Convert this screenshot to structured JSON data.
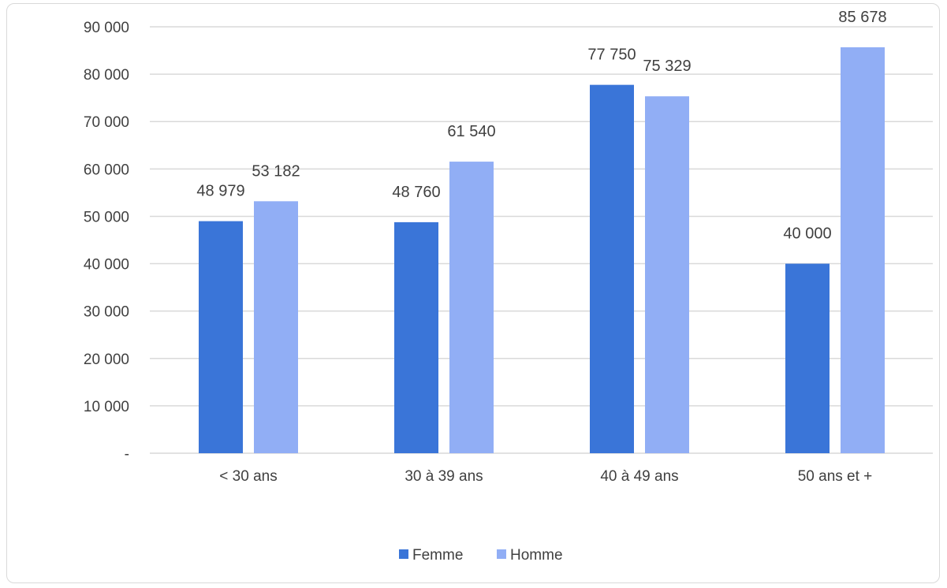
{
  "chart_data": {
    "type": "bar",
    "categories": [
      "< 30 ans",
      "30 à 39 ans",
      "40 à 49 ans",
      "50 ans et +"
    ],
    "series": [
      {
        "name": "Femme",
        "color": "#3a75d8",
        "values": [
          48979,
          48760,
          77750,
          40000
        ],
        "labels": [
          "48 979",
          "48 760",
          "77 750",
          "40 000"
        ]
      },
      {
        "name": "Homme",
        "color": "#91aef5",
        "values": [
          53182,
          61540,
          75329,
          85678
        ],
        "labels": [
          "53 182",
          "61 540",
          "75 329",
          "85 678"
        ]
      }
    ],
    "ylim": [
      0,
      90000
    ],
    "yticks": [
      0,
      10000,
      20000,
      30000,
      40000,
      50000,
      60000,
      70000,
      80000,
      90000
    ],
    "ytick_labels": [
      "-",
      "10 000",
      "20 000",
      "30 000",
      "40 000",
      "50 000",
      "60 000",
      "70 000",
      "80 000",
      "90 000"
    ],
    "grid": true,
    "gridline_color": "#d9d9d9",
    "legend_position": "bottom",
    "title": "",
    "xlabel": "",
    "ylabel": ""
  }
}
